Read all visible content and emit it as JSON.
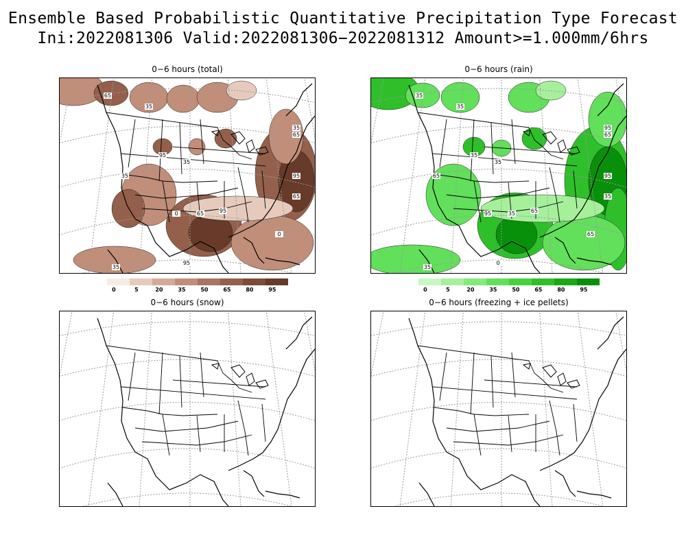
{
  "header": {
    "title_line1": "Ensemble Based Probabilistic Quantitative Precipitation Type Forecast",
    "title_line2": "Ini:2022081306 Valid:2022081306−2022081312 Amount>=1.000mm/6hrs"
  },
  "panels": [
    {
      "key": "total",
      "title": "0−6 hours (total)",
      "has_colorbar": true,
      "colorbar": {
        "labels": [
          "0",
          "5",
          "20",
          "35",
          "50",
          "65",
          "80",
          "95"
        ],
        "colors": [
          "#f6ece6",
          "#e6cbbd",
          "#d4aa97",
          "#c08e79",
          "#aa7560",
          "#94604b",
          "#7d4b38",
          "#683a29"
        ]
      },
      "contour_labels": [
        "65",
        "35",
        "95",
        "35",
        "35",
        "0",
        "65",
        "95",
        "35",
        "65",
        "95",
        "65",
        "0",
        "95",
        "35"
      ],
      "fill_colors": [
        "#e6cbbd",
        "#c08e79",
        "#94604b",
        "#683a29"
      ]
    },
    {
      "key": "rain",
      "title": "0−6 hours (rain)",
      "has_colorbar": true,
      "colorbar": {
        "labels": [
          "0",
          "5",
          "20",
          "35",
          "50",
          "65",
          "80",
          "95"
        ],
        "colors": [
          "#c8f7c2",
          "#a6f09c",
          "#85e87b",
          "#62df5b",
          "#45d23e",
          "#2fbf2a",
          "#1aa817",
          "#08900a"
        ]
      },
      "contour_labels": [
        "35",
        "35",
        "35",
        "35",
        "65",
        "95",
        "35",
        "65",
        "95",
        "65",
        "95",
        "35",
        "65",
        "0",
        "35"
      ],
      "fill_colors": [
        "#a6f09c",
        "#62df5b",
        "#2fbf2a",
        "#08900a"
      ]
    },
    {
      "key": "snow",
      "title": "0−6 hours (snow)",
      "has_colorbar": false,
      "contour_labels": [],
      "fill_colors": []
    },
    {
      "key": "freezing",
      "title": "0−6 hours (freezing + ice pellets)",
      "has_colorbar": false,
      "contour_labels": [],
      "fill_colors": []
    }
  ]
}
